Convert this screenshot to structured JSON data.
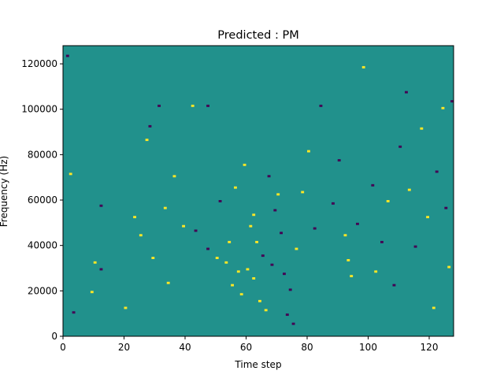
{
  "chart_data": {
    "type": "heatmap",
    "title": "Predicted : PM",
    "xlabel": "Time step",
    "ylabel": "Frequency (Hz)",
    "xlim": [
      0,
      128
    ],
    "ylim": [
      0,
      128000
    ],
    "x_ticks": [
      0,
      20,
      40,
      60,
      80,
      100,
      120
    ],
    "y_ticks": [
      0,
      20000,
      40000,
      60000,
      80000,
      100000,
      120000
    ],
    "grid": false,
    "legend": "none",
    "colormap": "viridis",
    "levels": {
      "background": {
        "value": 0,
        "color": "#21918c"
      },
      "low": {
        "value": -1,
        "color": "#440154"
      },
      "high": {
        "value": 1,
        "color": "#fde725"
      }
    },
    "rows": 128,
    "cells_note": "[time_step, freq_bin, level] — bin width 1000 Hz; unlisted cells are background",
    "cells": [
      [
        1,
        123,
        -1
      ],
      [
        2,
        71,
        1
      ],
      [
        3,
        10,
        -1
      ],
      [
        9,
        19,
        1
      ],
      [
        10,
        32,
        1
      ],
      [
        12,
        29,
        -1
      ],
      [
        12,
        57,
        -1
      ],
      [
        20,
        12,
        1
      ],
      [
        23,
        52,
        1
      ],
      [
        25,
        44,
        1
      ],
      [
        27,
        86,
        1
      ],
      [
        28,
        92,
        -1
      ],
      [
        29,
        34,
        1
      ],
      [
        31,
        101,
        -1
      ],
      [
        33,
        56,
        1
      ],
      [
        34,
        23,
        1
      ],
      [
        36,
        70,
        1
      ],
      [
        39,
        48,
        1
      ],
      [
        42,
        101,
        1
      ],
      [
        43,
        46,
        -1
      ],
      [
        47,
        38,
        -1
      ],
      [
        47,
        101,
        -1
      ],
      [
        50,
        34,
        1
      ],
      [
        51,
        59,
        -1
      ],
      [
        53,
        32,
        1
      ],
      [
        54,
        41,
        1
      ],
      [
        55,
        22,
        1
      ],
      [
        56,
        65,
        1
      ],
      [
        57,
        28,
        1
      ],
      [
        58,
        18,
        1
      ],
      [
        59,
        75,
        1
      ],
      [
        60,
        29,
        1
      ],
      [
        61,
        48,
        1
      ],
      [
        62,
        53,
        1
      ],
      [
        62,
        25,
        1
      ],
      [
        63,
        41,
        1
      ],
      [
        64,
        15,
        1
      ],
      [
        65,
        35,
        -1
      ],
      [
        66,
        11,
        1
      ],
      [
        67,
        70,
        -1
      ],
      [
        68,
        31,
        -1
      ],
      [
        69,
        55,
        -1
      ],
      [
        70,
        62,
        1
      ],
      [
        71,
        45,
        -1
      ],
      [
        72,
        27,
        -1
      ],
      [
        73,
        9,
        -1
      ],
      [
        74,
        20,
        -1
      ],
      [
        75,
        5,
        -1
      ],
      [
        76,
        38,
        1
      ],
      [
        78,
        63,
        1
      ],
      [
        80,
        81,
        1
      ],
      [
        82,
        47,
        -1
      ],
      [
        84,
        101,
        -1
      ],
      [
        88,
        58,
        -1
      ],
      [
        90,
        77,
        -1
      ],
      [
        92,
        44,
        1
      ],
      [
        93,
        33,
        1
      ],
      [
        94,
        26,
        1
      ],
      [
        96,
        49,
        -1
      ],
      [
        98,
        118,
        1
      ],
      [
        101,
        66,
        -1
      ],
      [
        102,
        28,
        1
      ],
      [
        104,
        41,
        -1
      ],
      [
        106,
        59,
        1
      ],
      [
        108,
        22,
        -1
      ],
      [
        110,
        83,
        -1
      ],
      [
        112,
        107,
        -1
      ],
      [
        113,
        64,
        1
      ],
      [
        115,
        39,
        -1
      ],
      [
        117,
        91,
        1
      ],
      [
        119,
        52,
        1
      ],
      [
        121,
        12,
        1
      ],
      [
        122,
        72,
        -1
      ],
      [
        124,
        100,
        1
      ],
      [
        125,
        56,
        -1
      ],
      [
        126,
        30,
        1
      ],
      [
        127,
        103,
        -1
      ]
    ]
  }
}
